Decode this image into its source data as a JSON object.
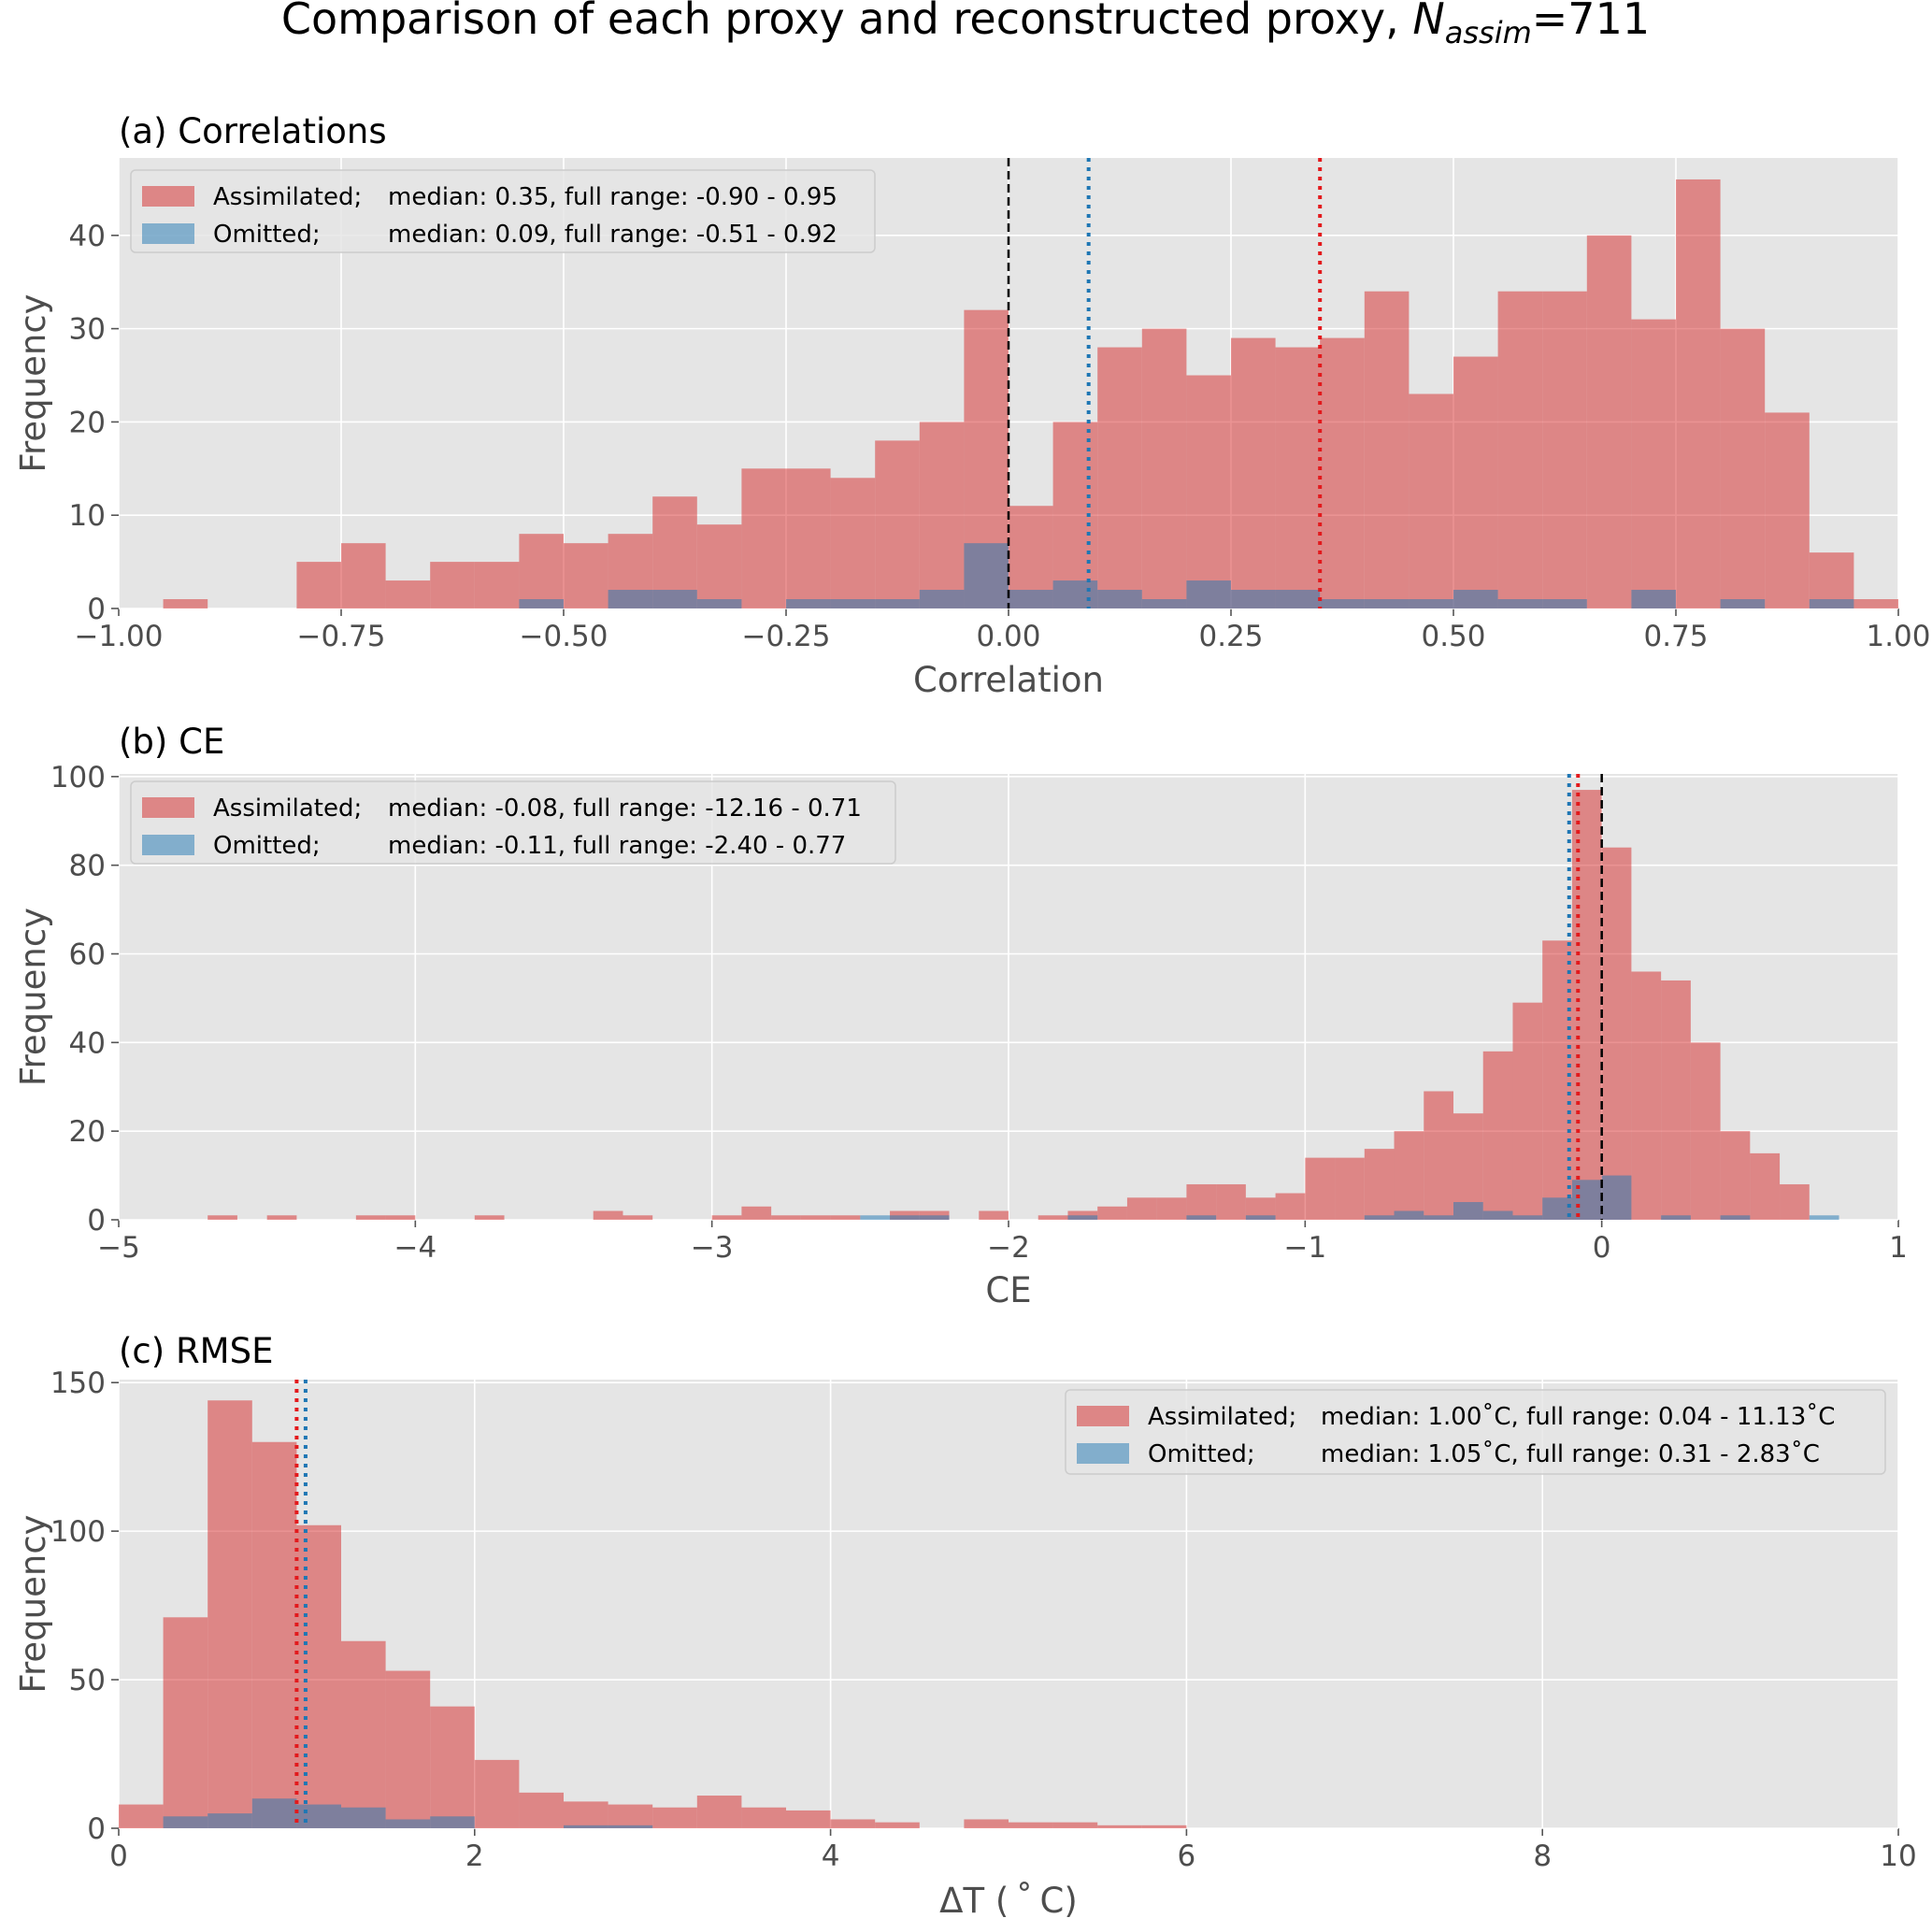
{
  "title": {
    "prefix": "Comparison of each proxy and reconstructed proxy, ",
    "var": "N",
    "sub": "assim",
    "suffix": "=711"
  },
  "colors": {
    "assimilated": "#d62728",
    "omitted": "#1f77b4",
    "median_assim": "#e3191c",
    "median_omit": "#1f77b4",
    "zero_line": "#000000",
    "background": "#e5e5e5"
  },
  "chart_data": [
    {
      "type": "bar",
      "title": "(a) Correlations",
      "xlabel": "Correlation",
      "ylabel": "Frequency",
      "xlim": [
        -1.0,
        1.0
      ],
      "ylim": [
        0,
        48.3
      ],
      "xticks": [
        -1.0,
        -0.75,
        -0.5,
        -0.25,
        0.0,
        0.25,
        0.5,
        0.75,
        1.0
      ],
      "xtick_labels": [
        "−1.00",
        "−0.75",
        "−0.50",
        "−0.25",
        "0.00",
        "0.25",
        "0.50",
        "0.75",
        "1.00"
      ],
      "yticks": [
        0,
        10,
        20,
        30,
        40
      ],
      "ytick_labels": [
        "0",
        "10",
        "20",
        "30",
        "40"
      ],
      "bin_start": -1.0,
      "bin_width": 0.05,
      "series": [
        {
          "name": "Assimilated",
          "values": [
            0,
            1,
            0,
            0,
            5,
            7,
            3,
            5,
            5,
            8,
            7,
            8,
            12,
            9,
            15,
            15,
            14,
            18,
            20,
            32,
            11,
            20,
            28,
            30,
            25,
            29,
            28,
            29,
            34,
            23,
            27,
            34,
            34,
            40,
            31,
            46,
            30,
            21,
            6,
            1
          ]
        },
        {
          "name": "Omitted",
          "values": [
            0,
            0,
            0,
            0,
            0,
            0,
            0,
            0,
            0,
            1,
            0,
            2,
            2,
            1,
            0,
            1,
            1,
            1,
            2,
            7,
            2,
            3,
            2,
            1,
            3,
            2,
            2,
            1,
            1,
            1,
            2,
            1,
            1,
            0,
            2,
            0,
            1,
            0,
            1,
            0
          ]
        }
      ],
      "medians": {
        "assimilated": 0.35,
        "omitted": 0.09
      },
      "zero_line": 0,
      "legend": {
        "position": "upper-left",
        "entries": [
          {
            "label": "Assimilated;",
            "stats": "median: 0.35,  full range: -0.90 - 0.95"
          },
          {
            "label": "Omitted;",
            "stats": "median: 0.09,  full range: -0.51 - 0.92"
          }
        ]
      }
    },
    {
      "type": "bar",
      "title": "(b) CE",
      "xlabel": "CE",
      "ylabel": "Frequency",
      "xlim": [
        -5,
        1
      ],
      "ylim": [
        0,
        100.6
      ],
      "xticks": [
        -5,
        -4,
        -3,
        -2,
        -1,
        0,
        1
      ],
      "xtick_labels": [
        "−5",
        "−4",
        "−3",
        "−2",
        "−1",
        "0",
        "1"
      ],
      "yticks": [
        0,
        20,
        40,
        60,
        80,
        100
      ],
      "ytick_labels": [
        "0",
        "20",
        "40",
        "60",
        "80",
        "100"
      ],
      "bin_start": -5.0,
      "bin_width": 0.1,
      "series": [
        {
          "name": "Assimilated",
          "values": [
            0,
            0,
            0,
            1,
            0,
            1,
            0,
            0,
            1,
            1,
            0,
            0,
            1,
            0,
            0,
            0,
            2,
            1,
            0,
            0,
            1,
            3,
            1,
            1,
            1,
            0,
            2,
            2,
            0,
            2,
            0,
            1,
            2,
            3,
            5,
            5,
            8,
            8,
            5,
            6,
            14,
            14,
            16,
            20,
            29,
            24,
            38,
            49,
            63,
            97,
            84,
            56,
            54,
            40,
            20,
            15,
            8,
            0
          ]
        },
        {
          "name": "Omitted",
          "values": [
            0,
            0,
            0,
            0,
            0,
            0,
            0,
            0,
            0,
            0,
            0,
            0,
            0,
            0,
            0,
            0,
            0,
            0,
            0,
            0,
            0,
            0,
            0,
            0,
            0,
            1,
            1,
            1,
            0,
            0,
            0,
            0,
            1,
            0,
            0,
            0,
            1,
            0,
            1,
            0,
            0,
            0,
            1,
            2,
            1,
            4,
            2,
            1,
            5,
            9,
            10,
            0,
            1,
            0,
            1,
            0,
            0,
            1
          ]
        }
      ],
      "medians": {
        "assimilated": -0.08,
        "omitted": -0.11
      },
      "zero_line": 0,
      "legend": {
        "position": "upper-left",
        "entries": [
          {
            "label": "Assimilated;",
            "stats": "median: -0.08,  full range: -12.16 - 0.71"
          },
          {
            "label": "Omitted;",
            "stats": "median: -0.11,  full range: -2.40 - 0.77"
          }
        ]
      }
    },
    {
      "type": "bar",
      "title": "(c) RMSE",
      "xlabel": "ΔT ( ˚ C)",
      "ylabel": "Frequency",
      "xlim": [
        0,
        10
      ],
      "ylim": [
        0,
        151
      ],
      "xticks": [
        0,
        2,
        4,
        6,
        8,
        10
      ],
      "xtick_labels": [
        "0",
        "2",
        "4",
        "6",
        "8",
        "10"
      ],
      "yticks": [
        0,
        50,
        100,
        150
      ],
      "ytick_labels": [
        "0",
        "50",
        "100",
        "150"
      ],
      "bin_start": 0,
      "bin_width": 0.25,
      "series": [
        {
          "name": "Assimilated",
          "values": [
            8,
            71,
            144,
            130,
            102,
            63,
            53,
            41,
            23,
            12,
            9,
            8,
            7,
            11,
            7,
            6,
            3,
            2,
            0,
            3,
            2,
            2,
            1,
            1
          ]
        },
        {
          "name": "Omitted",
          "values": [
            0,
            4,
            5,
            10,
            8,
            7,
            3,
            4,
            0,
            0,
            1,
            1,
            0,
            0,
            0,
            0,
            0,
            0,
            0,
            0,
            0,
            0,
            0,
            0
          ]
        }
      ],
      "medians": {
        "assimilated": 1.0,
        "omitted": 1.05
      },
      "zero_line": null,
      "legend": {
        "position": "upper-right",
        "entries": [
          {
            "label": "Assimilated;",
            "stats": "median: 1.00˚C,  full range: 0.04 - 11.13˚C"
          },
          {
            "label": "Omitted;",
            "stats": "median: 1.05˚C,  full range: 0.31 - 2.83˚C"
          }
        ]
      }
    }
  ]
}
